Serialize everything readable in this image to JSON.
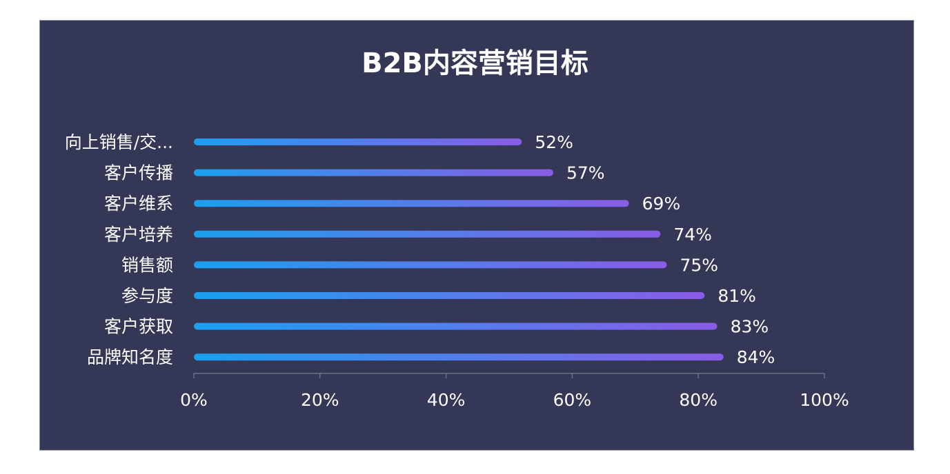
{
  "chart_data": {
    "type": "bar",
    "orientation": "horizontal",
    "title": "B2B内容营销目标",
    "categories": [
      "向上销售/交...",
      "客户传播",
      "客户维系",
      "客户培养",
      "销售额",
      "参与度",
      "客户获取",
      "品牌知名度"
    ],
    "values": [
      52,
      57,
      69,
      74,
      75,
      81,
      83,
      84
    ],
    "value_labels": [
      "52%",
      "57%",
      "69%",
      "74%",
      "75%",
      "81%",
      "83%",
      "84%"
    ],
    "xlim": [
      0,
      100
    ],
    "x_ticks": [
      "0%",
      "20%",
      "40%",
      "60%",
      "80%",
      "100%"
    ],
    "grid": false,
    "colors": {
      "background": "#343755",
      "bar_gradient_start": "#1aa0ef",
      "bar_gradient_end": "#8a5ce6",
      "axis": "#6b7088",
      "text": "#ffffff"
    }
  }
}
